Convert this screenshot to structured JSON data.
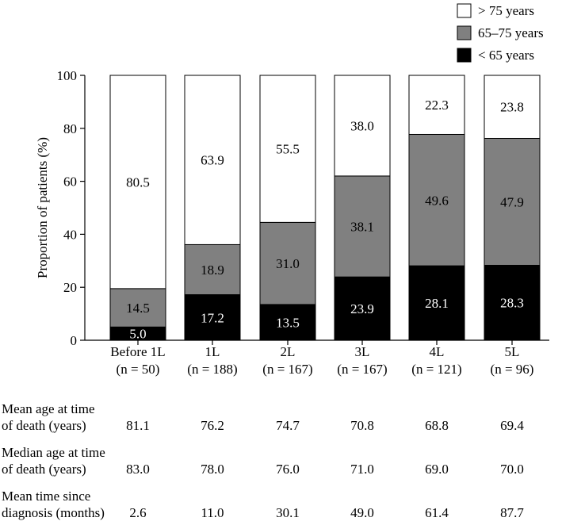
{
  "chart_data": {
    "type": "bar",
    "stacked": true,
    "ylabel": "Proportion of patients (%)",
    "ylim": [
      0,
      100
    ],
    "yticks": [
      0,
      20,
      40,
      60,
      80,
      100
    ],
    "categories": [
      "Before 1L",
      "1L",
      "2L",
      "3L",
      "4L",
      "5L"
    ],
    "category_n": [
      "(n = 50)",
      "(n = 188)",
      "(n = 167)",
      "(n = 167)",
      "(n = 121)",
      "(n = 96)"
    ],
    "series": [
      {
        "name": "< 65 years",
        "color": "#000000",
        "label_color": "#ffffff",
        "values": [
          5.0,
          17.2,
          13.5,
          23.9,
          28.1,
          28.3
        ]
      },
      {
        "name": "65–75 years",
        "color": "#808080",
        "label_color": "#000000",
        "values": [
          14.5,
          18.9,
          31.0,
          38.1,
          49.6,
          47.9
        ]
      },
      {
        "name": "> 75 years",
        "color": "#ffffff",
        "label_color": "#000000",
        "values": [
          80.5,
          63.9,
          55.5,
          38.0,
          22.3,
          23.8
        ]
      }
    ],
    "legend": {
      "position": "top-right",
      "order": [
        "> 75 years",
        "65–75 years",
        "< 65 years"
      ]
    }
  },
  "table": {
    "rows": [
      {
        "label": [
          "Mean age at time",
          "of death (years)"
        ],
        "values": [
          "81.1",
          "76.2",
          "74.7",
          "70.8",
          "68.8",
          "69.4"
        ]
      },
      {
        "label": [
          "Median age at time",
          "of death (years)"
        ],
        "values": [
          "83.0",
          "78.0",
          "76.0",
          "71.0",
          "69.0",
          "70.0"
        ]
      },
      {
        "label": [
          "Mean time since",
          "diagnosis (months)"
        ],
        "values": [
          "2.6",
          "11.0",
          "30.1",
          "49.0",
          "61.4",
          "87.7"
        ]
      }
    ]
  }
}
